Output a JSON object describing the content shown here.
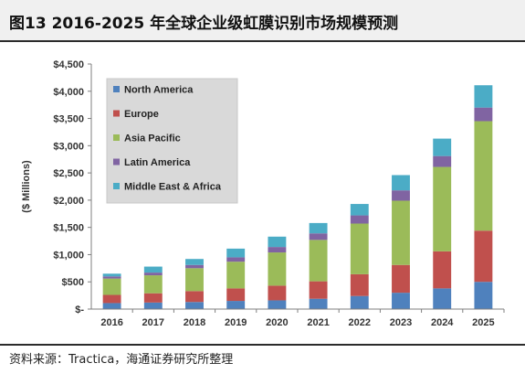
{
  "figure_title": "图13 2016-2025 年全球企业级虹膜识别市场规模预测",
  "source": "资料来源：Tractica，海通证券研究所整理",
  "chart_data": {
    "type": "bar",
    "stacked": true,
    "categories": [
      "2016",
      "2017",
      "2018",
      "2019",
      "2020",
      "2021",
      "2022",
      "2023",
      "2024",
      "2025"
    ],
    "ylabel": "($ Millions)",
    "ylim": [
      0,
      4500
    ],
    "yticks": [
      0,
      500,
      1000,
      1500,
      2000,
      2500,
      3000,
      3500,
      4000,
      4500
    ],
    "ytick_labels": [
      "$-",
      "$500",
      "$1,000",
      "$1,500",
      "$2,000",
      "$2,500",
      "$3,000",
      "$3,500",
      "$4,000",
      "$4,500"
    ],
    "legend_position": "top-left",
    "series": [
      {
        "name": "North America",
        "color": "#4f81bd",
        "values": [
          110,
          120,
          130,
          150,
          160,
          190,
          240,
          300,
          380,
          500
        ]
      },
      {
        "name": "Europe",
        "color": "#c0504d",
        "values": [
          150,
          170,
          200,
          230,
          270,
          320,
          400,
          510,
          680,
          940
        ]
      },
      {
        "name": "Asia Pacific",
        "color": "#9bbb59",
        "values": [
          300,
          330,
          420,
          490,
          610,
          760,
          930,
          1180,
          1550,
          2010
        ]
      },
      {
        "name": "Latin America",
        "color": "#8064a2",
        "values": [
          40,
          50,
          60,
          80,
          100,
          120,
          150,
          190,
          200,
          250
        ]
      },
      {
        "name": "Middle East & Africa",
        "color": "#4bacc6",
        "values": [
          50,
          110,
          110,
          160,
          190,
          190,
          210,
          280,
          320,
          410
        ]
      }
    ]
  }
}
